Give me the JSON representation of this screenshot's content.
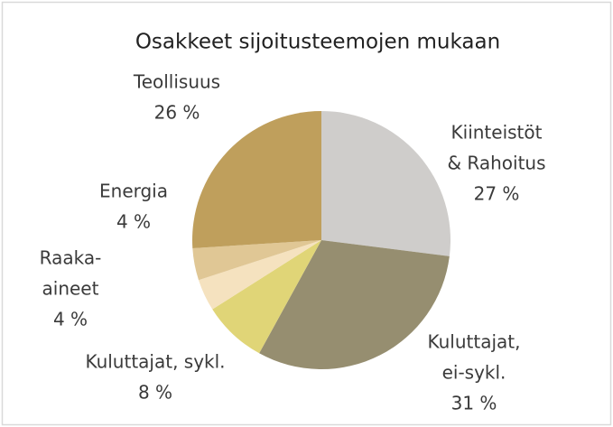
{
  "chart_data": {
    "type": "pie",
    "title": "Osakkeet sijoitusteemojen mukaan",
    "categories": [
      [
        "Kiinteistöt",
        "& Rahoitus"
      ],
      [
        "Kuluttajat,",
        "ei-sykl."
      ],
      [
        "Kuluttajat, sykl."
      ],
      [
        "Raaka-",
        "aineet"
      ],
      [
        "Energia"
      ],
      [
        "Teollisuus"
      ]
    ],
    "values": [
      27,
      31,
      8,
      4,
      4,
      26
    ],
    "value_labels": [
      "27 %",
      "31 %",
      "8 %",
      "4 %",
      "4 %",
      "26 %"
    ],
    "colors": [
      "#cfcdcb",
      "#968e70",
      "#e0d577",
      "#f5e2bf",
      "#e0c795",
      "#bf9f5c"
    ]
  }
}
